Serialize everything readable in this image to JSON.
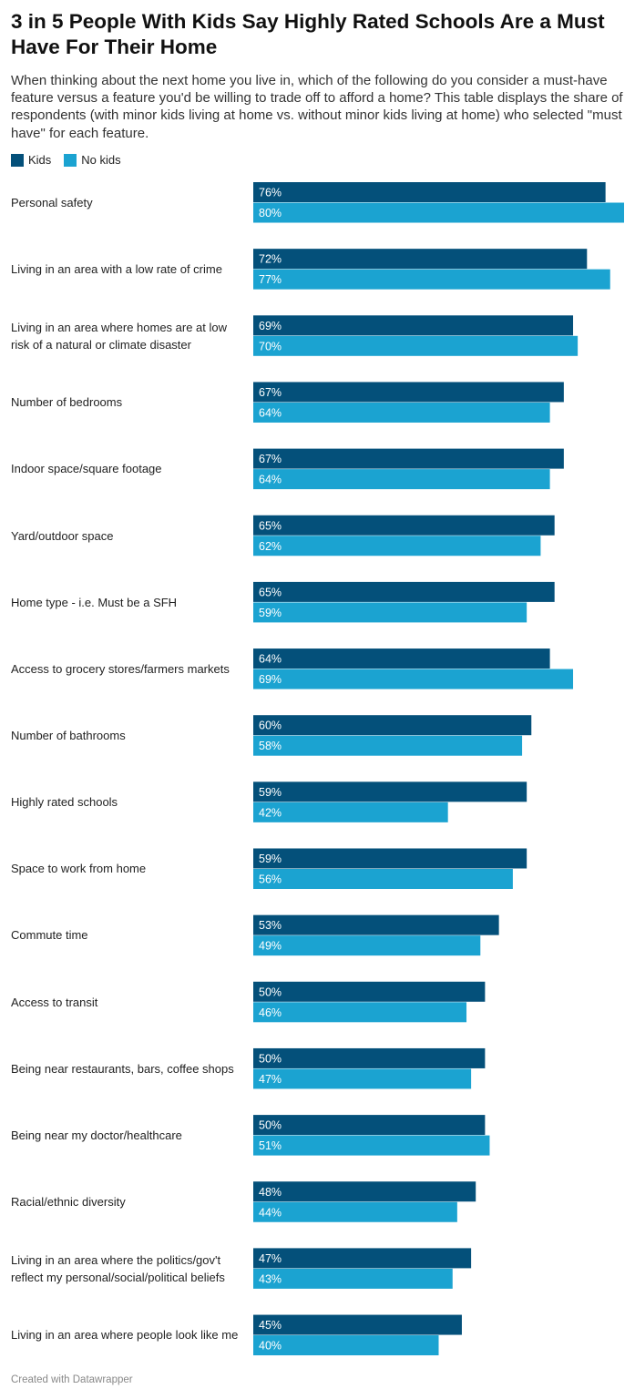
{
  "header": {
    "title": "3 in 5 People With Kids Say Highly Rated Schools Are a Must Have For Their Home",
    "subtitle": "When thinking about the next home you live in, which of the following do you consider a must-have feature versus a feature you'd be willing to trade off to afford a home? This table displays the share of respondents (with minor kids living at home vs. without minor kids living at home) who selected \"must have\" for each feature."
  },
  "legend": {
    "kids_label": "Kids",
    "nokids_label": "No kids"
  },
  "colors": {
    "kids": "#04507a",
    "nokids": "#1ba3d1"
  },
  "footer": {
    "credit": "Created with Datawrapper"
  },
  "chart_data": {
    "type": "bar",
    "orientation": "horizontal",
    "title": "3 in 5 People With Kids Say Highly Rated Schools Are a Must Have For Their Home",
    "xlabel": "",
    "ylabel": "",
    "xlim": [
      0,
      80
    ],
    "grid": false,
    "legend_position": "top-left",
    "value_suffix": "%",
    "categories": [
      [
        "Personal safety"
      ],
      [
        "Living in an area with a low rate of crime"
      ],
      [
        "Living in an area where homes are at low",
        "risk of a natural or climate disaster"
      ],
      [
        "Number of bedrooms"
      ],
      [
        "Indoor space/square footage"
      ],
      [
        "Yard/outdoor space"
      ],
      [
        "Home type - i.e. Must be a SFH"
      ],
      [
        "Access to grocery stores/farmers markets"
      ],
      [
        "Number of bathrooms"
      ],
      [
        "Highly rated schools"
      ],
      [
        "Space to work from home"
      ],
      [
        "Commute time"
      ],
      [
        "Access to transit"
      ],
      [
        "Being near restaurants, bars, coffee shops"
      ],
      [
        "Being near my doctor/healthcare"
      ],
      [
        "Racial/ethnic diversity"
      ],
      [
        "Living in an area where the politics/gov't",
        "reflect my personal/social/political beliefs"
      ],
      [
        "Living in an area where people look like me"
      ]
    ],
    "series": [
      {
        "name": "Kids",
        "values": [
          76,
          72,
          69,
          67,
          67,
          65,
          65,
          64,
          60,
          59,
          59,
          53,
          50,
          50,
          50,
          48,
          47,
          45
        ]
      },
      {
        "name": "No kids",
        "values": [
          80,
          77,
          70,
          64,
          64,
          62,
          59,
          69,
          58,
          42,
          56,
          49,
          46,
          47,
          51,
          44,
          43,
          40
        ]
      }
    ]
  }
}
